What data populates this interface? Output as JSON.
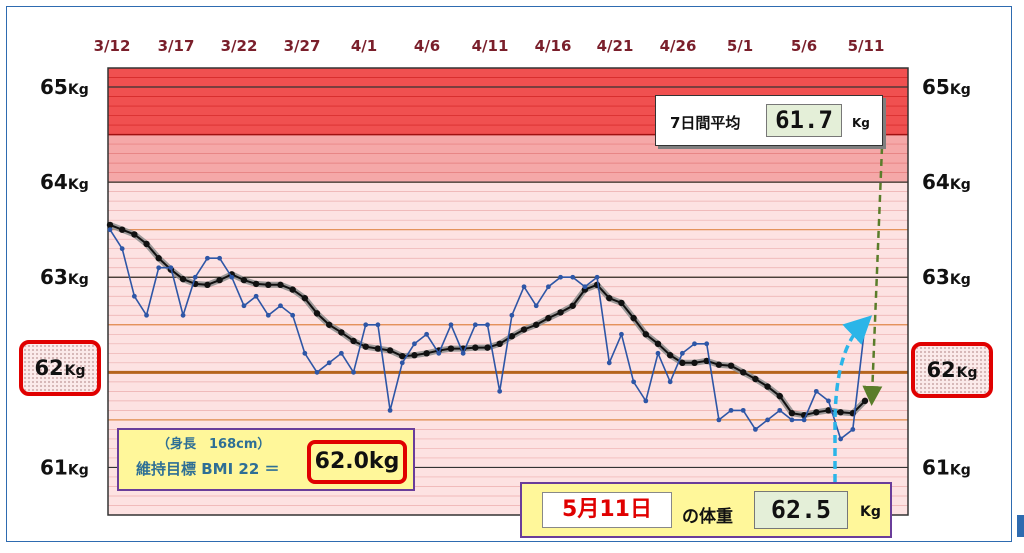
{
  "chart_data": {
    "type": "line",
    "x_ticks": [
      "3/12",
      "3/17",
      "3/22",
      "3/27",
      "4/1",
      "4/6",
      "4/11",
      "4/16",
      "4/21",
      "4/26",
      "5/1",
      "5/6",
      "5/11"
    ],
    "y_ticks": [
      61,
      62,
      63,
      64,
      65
    ],
    "y_unit": "Kg",
    "ylim": [
      60.5,
      65.2
    ],
    "x_range": [
      "3/12",
      "5/11"
    ],
    "target_weight": 62.0,
    "series": [
      {
        "kind": "daily",
        "color": "#2e56a6",
        "values": [
          63.5,
          63.3,
          62.8,
          62.6,
          63.1,
          63.1,
          62.6,
          63.0,
          63.2,
          63.2,
          63.0,
          62.7,
          62.8,
          62.6,
          62.7,
          62.6,
          62.2,
          62.0,
          62.1,
          62.2,
          62.0,
          62.5,
          62.5,
          61.6,
          62.1,
          62.3,
          62.4,
          62.2,
          62.5,
          62.2,
          62.5,
          62.5,
          61.8,
          62.6,
          62.9,
          62.7,
          62.9,
          63.0,
          63.0,
          62.9,
          63.0,
          62.1,
          62.4,
          61.9,
          61.7,
          62.2,
          61.9,
          62.2,
          62.3,
          62.3,
          61.5,
          61.6,
          61.6,
          61.4,
          61.5,
          61.6,
          61.5,
          61.5,
          61.8,
          61.7,
          61.3,
          61.4,
          62.5
        ]
      },
      {
        "kind": "7-day average",
        "color": "#111111",
        "values": [
          63.55,
          63.5,
          63.45,
          63.35,
          63.2,
          63.08,
          62.98,
          62.93,
          62.92,
          62.97,
          63.03,
          62.97,
          62.93,
          62.92,
          62.92,
          62.87,
          62.78,
          62.62,
          62.5,
          62.42,
          62.33,
          62.27,
          62.25,
          62.23,
          62.17,
          62.18,
          62.2,
          62.23,
          62.25,
          62.25,
          62.26,
          62.26,
          62.3,
          62.38,
          62.45,
          62.5,
          62.57,
          62.63,
          62.7,
          62.87,
          62.92,
          62.78,
          62.73,
          62.57,
          62.4,
          62.3,
          62.18,
          62.1,
          62.1,
          62.12,
          62.08,
          62.07,
          62.0,
          61.93,
          61.85,
          61.75,
          61.57,
          61.55,
          61.58,
          61.6,
          61.58,
          61.57,
          61.7
        ]
      }
    ],
    "bands": [
      {
        "from": 64.5,
        "to": 65.2,
        "color": "#f05050",
        "line": "#c81818"
      },
      {
        "from": 64.0,
        "to": 64.5,
        "color": "#f5a8a8",
        "line": "#e07070"
      },
      {
        "from": 60.5,
        "to": 64.0,
        "color": "#fde2e2",
        "line": "#e8a0a0"
      }
    ]
  },
  "avg_box": {
    "label": "7日間平均",
    "value": "61.7",
    "unit": "Kg"
  },
  "target_box": {
    "height_note": "（身長　168cm）",
    "label": "維持目標 BMI 22 ＝",
    "value": "62.0kg"
  },
  "today_box": {
    "date": "5月11日",
    "label": "の体重",
    "value": "62.5",
    "unit": "Kg"
  },
  "markers": {
    "num": "62",
    "unit": "Kg"
  }
}
